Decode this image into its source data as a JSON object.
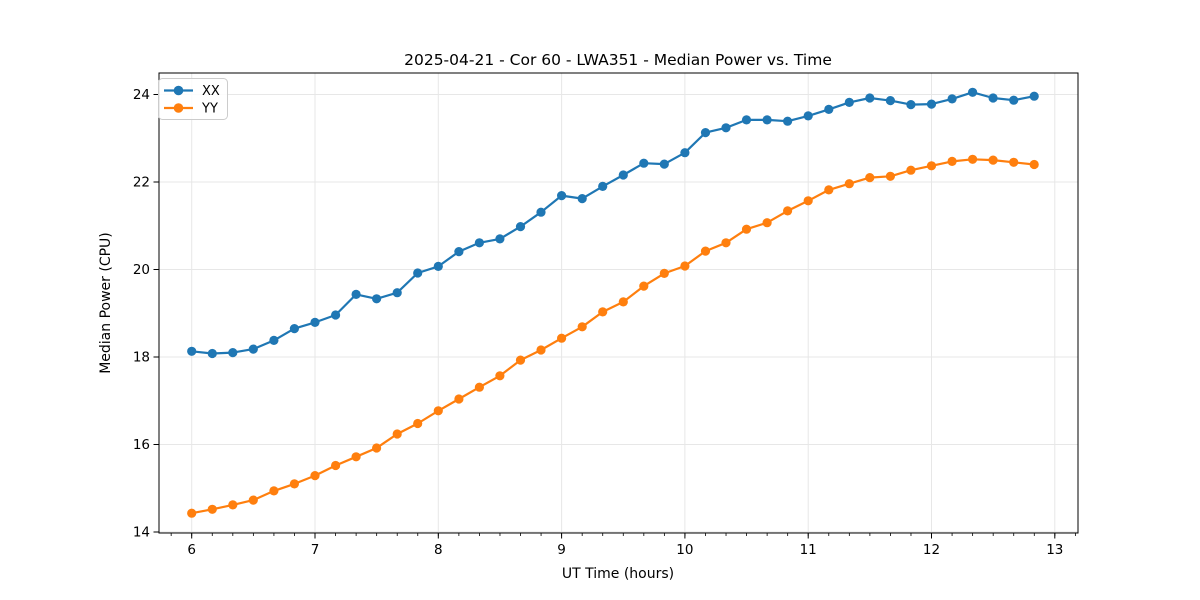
{
  "chart_data": {
    "type": "line",
    "title": "2025-04-21 - Cor 60 - LWA351 - Median Power vs. Time",
    "xlabel": "UT Time (hours)",
    "ylabel": "Median Power (CPU)",
    "x": [
      6.0,
      6.167,
      6.333,
      6.5,
      6.667,
      6.833,
      7.0,
      7.167,
      7.333,
      7.5,
      7.667,
      7.833,
      8.0,
      8.167,
      8.333,
      8.5,
      8.667,
      8.833,
      9.0,
      9.167,
      9.333,
      9.5,
      9.667,
      9.833,
      10.0,
      10.167,
      10.333,
      10.5,
      10.667,
      10.833,
      11.0,
      11.167,
      11.333,
      11.5,
      11.667,
      11.833,
      12.0,
      12.167,
      12.333,
      12.5,
      12.667,
      12.833
    ],
    "series": [
      {
        "name": "XX",
        "color": "#1f77b4",
        "values": [
          18.13,
          18.08,
          18.1,
          18.18,
          18.38,
          18.65,
          18.79,
          18.96,
          19.43,
          19.33,
          19.47,
          19.92,
          20.07,
          20.41,
          20.61,
          20.7,
          20.98,
          21.31,
          21.69,
          21.62,
          21.9,
          22.16,
          22.43,
          22.41,
          22.67,
          23.13,
          23.24,
          23.42,
          23.42,
          23.39,
          23.51,
          23.66,
          23.82,
          23.92,
          23.86,
          23.77,
          23.78,
          23.9,
          24.05,
          23.92,
          23.87,
          23.96
        ]
      },
      {
        "name": "YY",
        "color": "#ff7f0e",
        "values": [
          14.43,
          14.52,
          14.62,
          14.73,
          14.94,
          15.1,
          15.29,
          15.52,
          15.72,
          15.92,
          16.24,
          16.48,
          16.77,
          17.04,
          17.31,
          17.57,
          17.93,
          18.16,
          18.43,
          18.69,
          19.03,
          19.26,
          19.62,
          19.91,
          20.08,
          20.42,
          20.61,
          20.92,
          21.07,
          21.34,
          21.57,
          21.82,
          21.96,
          22.1,
          22.13,
          22.27,
          22.37,
          22.47,
          22.52,
          22.5,
          22.45,
          22.4
        ]
      }
    ],
    "xticks": [
      6,
      7,
      8,
      9,
      10,
      11,
      12,
      13
    ],
    "yticks": [
      14,
      16,
      18,
      20,
      22,
      24
    ],
    "x_minor_step": 0.16667,
    "xlim": [
      5.735,
      13.188
    ],
    "ylim": [
      13.98,
      24.49
    ],
    "grid": true,
    "grid_color": "#e7e7e7",
    "legend_position": "upper-left",
    "marker": "circle",
    "line_width": 2.2,
    "marker_radius": 4.6
  }
}
